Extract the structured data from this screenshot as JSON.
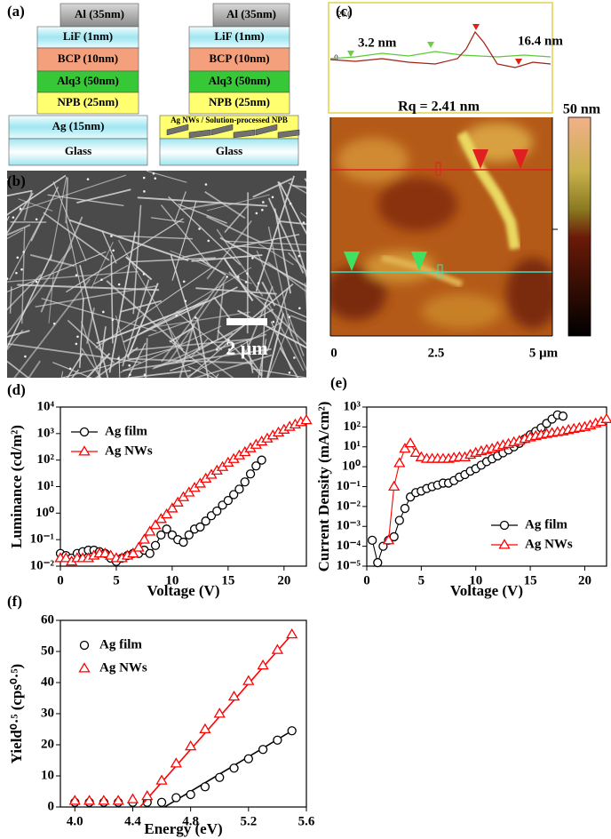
{
  "panel_a": {
    "label": "(a)",
    "device_1": {
      "layers": [
        "Al (35nm)",
        "LiF (1nm)",
        "BCP (10nm)",
        "Alq3 (50nm)",
        "NPB (25nm)",
        "Ag (15nm)",
        "Glass"
      ]
    },
    "device_2": {
      "layers": [
        "Al (35nm)",
        "LiF (1nm)",
        "BCP (10nm)",
        "Alq3 (50nm)",
        "NPB (25nm)",
        "Ag NWs / Solution-processed NPB",
        "Glass"
      ]
    }
  },
  "panel_b": {
    "label": "(b)",
    "scale_bar": "2 μm"
  },
  "panel_c": {
    "label": "(c)",
    "profile_ticks": [
      "20.0",
      ".0"
    ],
    "annotations": [
      "3.2 nm",
      "16.4 nm"
    ],
    "rq": "Rq = 2.41 nm",
    "colorbar_label": "50 nm",
    "x_ticks": [
      "0",
      "2.5",
      "5 μm"
    ]
  },
  "chart_data": [
    {
      "type": "line",
      "panel_label": "(d)",
      "x_label": "Voltage (V)",
      "y_label": "Luminance (cd/m²)",
      "xlim": [
        0,
        22
      ],
      "xticks": [
        0,
        5,
        10,
        15,
        20
      ],
      "ylim": [
        0.01,
        10000
      ],
      "ylog": true,
      "yticks": [
        {
          "value": 0.01,
          "label": "10⁻²"
        },
        {
          "value": 0.1,
          "label": "10⁻¹"
        },
        {
          "value": 1,
          "label": "10⁰"
        },
        {
          "value": 10,
          "label": "10¹"
        },
        {
          "value": 100,
          "label": "10²"
        },
        {
          "value": 1000,
          "label": "10³"
        },
        {
          "value": 10000,
          "label": "10⁴"
        }
      ],
      "legend": "upper left",
      "connect": true,
      "series": [
        {
          "name": "Ag film",
          "color": "#000000",
          "marker": "circle",
          "x": [
            0,
            0.5,
            1,
            1.5,
            2,
            2.5,
            3,
            3.5,
            4,
            4.5,
            5,
            5.5,
            6,
            6.5,
            7,
            7.5,
            8,
            8.5,
            9,
            9.5,
            10,
            10.5,
            11,
            11.5,
            12,
            12.5,
            13,
            13.5,
            14,
            14.5,
            15,
            15.5,
            16,
            16.5,
            17,
            17.5,
            18
          ],
          "values": [
            0.03,
            0.025,
            0.02,
            0.03,
            0.035,
            0.04,
            0.04,
            0.035,
            0.03,
            0.02,
            0.015,
            0.02,
            0.025,
            0.03,
            0.03,
            0.04,
            0.03,
            0.06,
            0.15,
            0.25,
            0.15,
            0.1,
            0.08,
            0.15,
            0.25,
            0.3,
            0.5,
            0.8,
            1.2,
            2,
            3,
            5,
            8,
            15,
            30,
            60,
            100
          ]
        },
        {
          "name": "Ag NWs",
          "color": "#ff0000",
          "marker": "triangle",
          "x": [
            0,
            0.5,
            1,
            1.5,
            2,
            2.5,
            3,
            3.5,
            4,
            4.5,
            5,
            5.5,
            6,
            6.5,
            7,
            7.5,
            8,
            8.5,
            9,
            9.5,
            10,
            10.5,
            11,
            11.5,
            12,
            12.5,
            13,
            13.5,
            14,
            14.5,
            15,
            15.5,
            16,
            16.5,
            17,
            17.5,
            18,
            18.5,
            19,
            19.5,
            20,
            20.5,
            21,
            21.5,
            22
          ],
          "values": [
            0.02,
            0.02,
            0.015,
            0.02,
            0.02,
            0.02,
            0.025,
            0.03,
            0.03,
            0.025,
            0.02,
            0.02,
            0.025,
            0.03,
            0.05,
            0.1,
            0.2,
            0.35,
            0.6,
            0.9,
            1.5,
            2.5,
            4,
            6,
            9,
            13,
            20,
            28,
            40,
            55,
            80,
            110,
            150,
            200,
            280,
            380,
            500,
            650,
            850,
            1100,
            1400,
            1800,
            2200,
            2700,
            3200
          ]
        }
      ]
    },
    {
      "type": "line",
      "panel_label": "(e)",
      "x_label": "Voltage (V)",
      "y_label": "Current Density (mA/cm²)",
      "xlim": [
        0,
        22
      ],
      "xticks": [
        0,
        5,
        10,
        15,
        20
      ],
      "ylim": [
        1e-05,
        1000
      ],
      "ylog": true,
      "yticks": [
        {
          "value": 1e-05,
          "label": "10⁻⁵"
        },
        {
          "value": 0.0001,
          "label": "10⁻⁴"
        },
        {
          "value": 0.001,
          "label": "10⁻³"
        },
        {
          "value": 0.01,
          "label": "10⁻²"
        },
        {
          "value": 0.1,
          "label": "10⁻¹"
        },
        {
          "value": 1,
          "label": "10⁰"
        },
        {
          "value": 10,
          "label": "10¹"
        },
        {
          "value": 100,
          "label": "10²"
        },
        {
          "value": 1000,
          "label": "10³"
        }
      ],
      "legend": "lower right",
      "connect": true,
      "series": [
        {
          "name": "Ag film",
          "color": "#000000",
          "marker": "circle",
          "x": [
            0.5,
            1,
            1.5,
            2,
            2.5,
            3,
            3.5,
            4,
            4.5,
            5,
            5.5,
            6,
            6.5,
            7,
            7.5,
            8,
            8.5,
            9,
            9.5,
            10,
            10.5,
            11,
            11.5,
            12,
            12.5,
            13,
            13.5,
            14,
            14.5,
            15,
            15.5,
            16,
            16.5,
            17,
            17.5,
            18
          ],
          "values": [
            0.0002,
            1.5e-05,
            0.0001,
            0.0002,
            0.0003,
            0.002,
            0.008,
            0.03,
            0.05,
            0.06,
            0.08,
            0.1,
            0.12,
            0.15,
            0.15,
            0.2,
            0.3,
            0.4,
            0.6,
            0.8,
            1.2,
            1.8,
            2.5,
            3.5,
            5,
            7,
            10,
            15,
            25,
            40,
            60,
            90,
            150,
            250,
            400,
            350
          ]
        },
        {
          "name": "Ag NWs",
          "color": "#ff0000",
          "marker": "triangle",
          "x": [
            2,
            2.5,
            3,
            3.5,
            4,
            4.5,
            5,
            5.5,
            6,
            6.5,
            7,
            7.5,
            8,
            8.5,
            9,
            9.5,
            10,
            10.5,
            11,
            11.5,
            12,
            12.5,
            13,
            13.5,
            14,
            14.5,
            15,
            15.5,
            16,
            16.5,
            17,
            17.5,
            18,
            18.5,
            19,
            19.5,
            20,
            20.5,
            21,
            21.5,
            22
          ],
          "values": [
            0.0002,
            0.1,
            1.5,
            8,
            15,
            5,
            3,
            2.5,
            2.5,
            2.5,
            2.5,
            2.5,
            2.8,
            3,
            3,
            4,
            5,
            6,
            7,
            8,
            10,
            12,
            14,
            17,
            20,
            25,
            30,
            35,
            40,
            45,
            50,
            55,
            60,
            70,
            80,
            90,
            100,
            120,
            150,
            180,
            250
          ]
        }
      ]
    },
    {
      "type": "scatter",
      "panel_label": "(f)",
      "x_label": "Energy (eV)",
      "y_label": "Yield⁰·⁵ (cps⁰·⁵)",
      "xlim": [
        3.9,
        5.6
      ],
      "xticks": [
        {
          "value": 4,
          "label": "4.0"
        },
        {
          "value": 4.4,
          "label": "4.4"
        },
        {
          "value": 4.8,
          "label": "4.8"
        },
        {
          "value": 5.2,
          "label": "5.2"
        },
        {
          "value": 5.6,
          "label": "5.6"
        }
      ],
      "ylim": [
        0,
        60
      ],
      "yticks": [
        0,
        10,
        20,
        30,
        40,
        50,
        60
      ],
      "legend": "upper left",
      "connect": false,
      "series": [
        {
          "name": "Ag film",
          "color": "#000000",
          "marker": "circle",
          "x": [
            4,
            4.1,
            4.2,
            4.3,
            4.4,
            4.5,
            4.6,
            4.7,
            4.8,
            4.9,
            5,
            5.1,
            5.2,
            5.3,
            5.4,
            5.5
          ],
          "values": [
            1.5,
            1.5,
            1.5,
            1.5,
            1.5,
            1.5,
            1.5,
            3,
            4,
            6.5,
            9.5,
            12.5,
            15.5,
            18.5,
            21.5,
            24.5
          ],
          "fit_x": [
            4.62,
            5.5
          ],
          "fit_values": [
            0,
            24.5
          ]
        },
        {
          "name": "Ag NWs",
          "color": "#ff0000",
          "marker": "triangle",
          "x": [
            4,
            4.1,
            4.2,
            4.3,
            4.4,
            4.5,
            4.6,
            4.7,
            4.8,
            4.9,
            5,
            5.1,
            5.2,
            5.3,
            5.4,
            5.5
          ],
          "values": [
            2,
            2,
            2,
            2,
            2.5,
            3.5,
            8.5,
            14,
            19.5,
            25,
            30,
            35.5,
            40.5,
            45.5,
            50.5,
            55.5
          ],
          "fit_x": [
            4.45,
            5.5
          ],
          "fit_values": [
            0,
            55.5
          ]
        }
      ]
    }
  ]
}
